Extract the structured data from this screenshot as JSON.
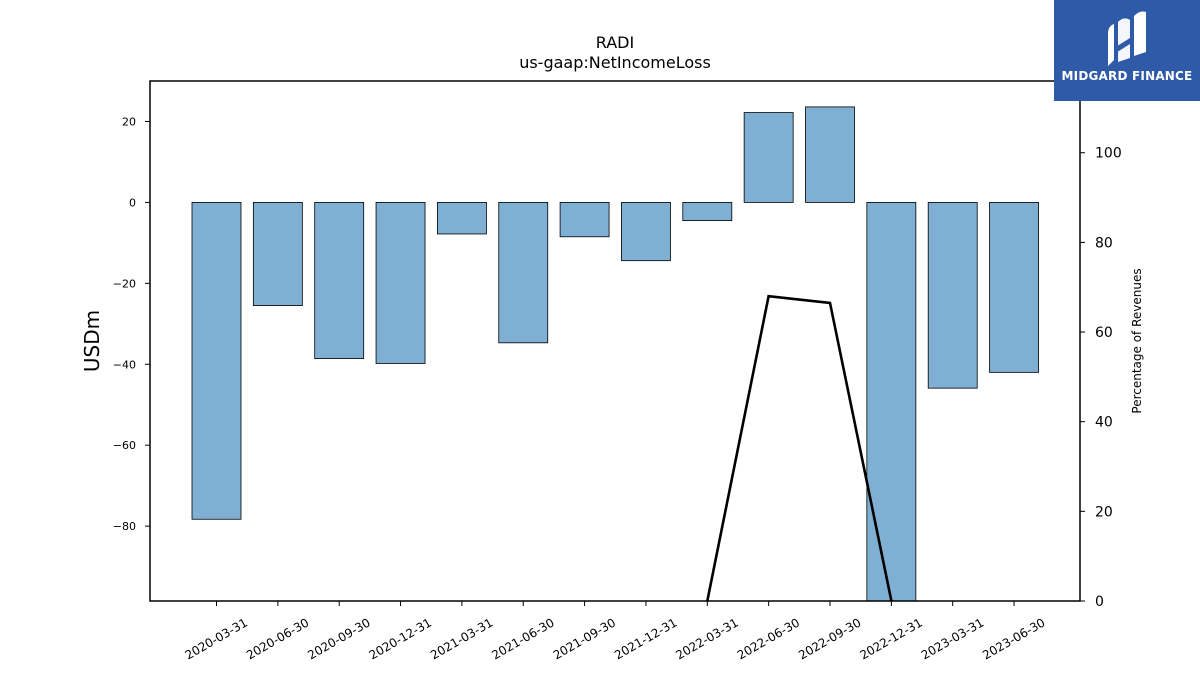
{
  "chart_data": {
    "type": "bar",
    "title": "RADI",
    "subtitle": "us-gaap:NetIncomeLoss",
    "ylabel": "USDm",
    "y2label": "Percentage of Revenues",
    "ylim": [
      -98.5,
      30
    ],
    "y2lim": [
      0,
      116
    ],
    "yticks": [
      20,
      0,
      -20,
      -40,
      -60,
      -80
    ],
    "y2ticks": [
      0,
      20,
      40,
      60,
      80,
      100
    ],
    "categories": [
      "2020-03-31",
      "2020-06-30",
      "2020-09-30",
      "2020-12-31",
      "2021-03-31",
      "2021-06-30",
      "2021-09-30",
      "2021-12-31",
      "2022-03-31",
      "2022-06-30",
      "2022-09-30",
      "2022-12-31",
      "2023-03-31",
      "2023-06-30"
    ],
    "series": [
      {
        "axis": "left",
        "kind": "bar",
        "color": "#7fafd3",
        "values": [
          -78.3,
          -25.5,
          -38.6,
          -39.8,
          -7.8,
          -34.7,
          -8.5,
          -14.4,
          -4.5,
          22.2,
          23.6,
          -98.5,
          -45.9,
          -42.0
        ]
      },
      {
        "axis": "right",
        "kind": "line",
        "color": "#000000",
        "points": [
          {
            "x": "2022-03-31",
            "y": 0
          },
          {
            "x": "2022-06-30",
            "y": 68.0
          },
          {
            "x": "2022-09-30",
            "y": 66.5
          },
          {
            "x": "2022-12-31",
            "y": 0
          }
        ]
      }
    ]
  },
  "logo": {
    "text": "MIDGARD FINANCE"
  }
}
